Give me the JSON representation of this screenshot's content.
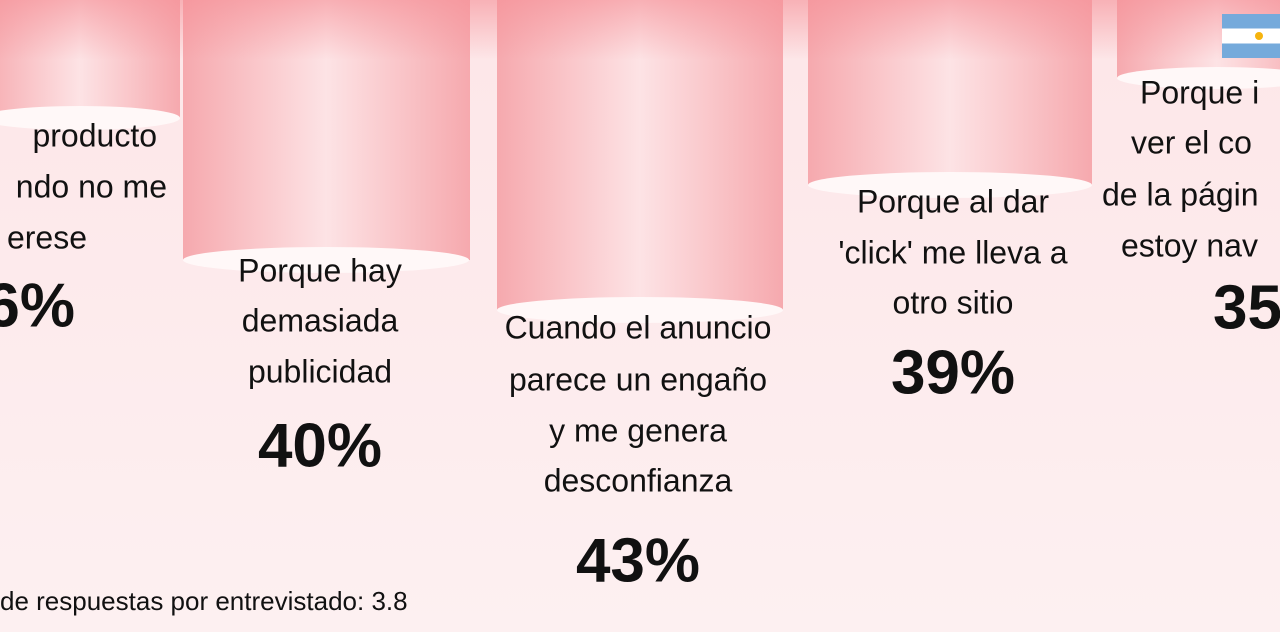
{
  "items": [
    {
      "lines": [
        "producto",
        "ndo no me",
        "erese"
      ],
      "value": "6%"
    },
    {
      "lines": [
        "Porque hay",
        "demasiada",
        "publicidad"
      ],
      "value": "40%"
    },
    {
      "lines": [
        "Cuando el anuncio",
        "parece un engaño",
        "y me genera",
        "desconfianza"
      ],
      "value": "43%"
    },
    {
      "lines": [
        "Porque al dar",
        "'click' me lleva a",
        "otro sitio"
      ],
      "value": "39%"
    },
    {
      "lines": [
        "Porque i",
        "ver el co",
        "de la págin",
        "estoy nav"
      ],
      "value": "35"
    }
  ],
  "footnote": "de respuestas por entrevistado: 3.8"
}
